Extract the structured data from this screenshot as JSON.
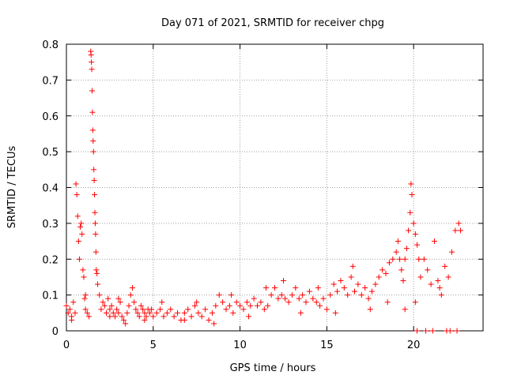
{
  "chart_data": {
    "type": "scatter",
    "title": "Day 071 of 2021, SRMTID for receiver chpg",
    "xlabel": "GPS time / hours",
    "ylabel": "SRMTID / TECUs",
    "xlim": [
      0,
      24
    ],
    "ylim": [
      0,
      0.8
    ],
    "x_ticks": [
      0,
      5,
      10,
      15,
      20
    ],
    "x_tick_labels": [
      "0",
      "5",
      "10",
      "15",
      "20"
    ],
    "y_ticks": [
      0,
      0.1,
      0.2,
      0.3,
      0.4,
      0.5,
      0.6,
      0.7,
      0.8
    ],
    "y_tick_labels": [
      "0",
      "0.1",
      "0.2",
      "0.3",
      "0.4",
      "0.5",
      "0.6",
      "0.7",
      "0.8"
    ],
    "grid": true,
    "marker": "+",
    "color": "#ff0000",
    "series": [
      {
        "name": "SRMTID",
        "points": [
          [
            0.0,
            0.07
          ],
          [
            0.1,
            0.05
          ],
          [
            0.2,
            0.06
          ],
          [
            0.3,
            0.04
          ],
          [
            0.4,
            0.08
          ],
          [
            0.5,
            0.05
          ],
          [
            0.55,
            0.41
          ],
          [
            0.6,
            0.38
          ],
          [
            0.65,
            0.32
          ],
          [
            0.7,
            0.25
          ],
          [
            0.75,
            0.2
          ],
          [
            0.8,
            0.29
          ],
          [
            0.85,
            0.3
          ],
          [
            0.9,
            0.27
          ],
          [
            0.95,
            0.17
          ],
          [
            1.0,
            0.15
          ],
          [
            1.05,
            0.09
          ],
          [
            1.1,
            0.06
          ],
          [
            1.2,
            0.05
          ],
          [
            1.3,
            0.04
          ],
          [
            1.4,
            0.78
          ],
          [
            1.42,
            0.77
          ],
          [
            1.44,
            0.75
          ],
          [
            1.46,
            0.73
          ],
          [
            1.48,
            0.67
          ],
          [
            1.5,
            0.61
          ],
          [
            1.52,
            0.56
          ],
          [
            1.54,
            0.53
          ],
          [
            1.56,
            0.5
          ],
          [
            1.58,
            0.45
          ],
          [
            1.6,
            0.42
          ],
          [
            1.62,
            0.38
          ],
          [
            1.64,
            0.33
          ],
          [
            1.66,
            0.3
          ],
          [
            1.68,
            0.27
          ],
          [
            1.7,
            0.22
          ],
          [
            1.72,
            0.17
          ],
          [
            1.76,
            0.16
          ],
          [
            1.8,
            0.13
          ],
          [
            1.9,
            0.1
          ],
          [
            2.0,
            0.06
          ],
          [
            2.1,
            0.08
          ],
          [
            2.2,
            0.07
          ],
          [
            2.3,
            0.05
          ],
          [
            2.4,
            0.09
          ],
          [
            2.5,
            0.06
          ],
          [
            2.6,
            0.07
          ],
          [
            2.7,
            0.05
          ],
          [
            2.8,
            0.04
          ],
          [
            2.9,
            0.06
          ],
          [
            3.0,
            0.05
          ],
          [
            3.1,
            0.08
          ],
          [
            3.2,
            0.04
          ],
          [
            3.3,
            0.03
          ],
          [
            3.4,
            0.02
          ],
          [
            3.5,
            0.05
          ],
          [
            3.6,
            0.07
          ],
          [
            3.7,
            0.1
          ],
          [
            3.8,
            0.12
          ],
          [
            3.9,
            0.08
          ],
          [
            4.0,
            0.06
          ],
          [
            4.1,
            0.05
          ],
          [
            4.2,
            0.04
          ],
          [
            4.3,
            0.07
          ],
          [
            4.4,
            0.06
          ],
          [
            4.5,
            0.05
          ],
          [
            4.6,
            0.04
          ],
          [
            4.7,
            0.06
          ],
          [
            4.8,
            0.05
          ],
          [
            4.9,
            0.06
          ],
          [
            5.0,
            0.04
          ],
          [
            5.2,
            0.05
          ],
          [
            5.4,
            0.06
          ],
          [
            5.6,
            0.04
          ],
          [
            5.8,
            0.05
          ],
          [
            6.0,
            0.06
          ],
          [
            6.2,
            0.04
          ],
          [
            6.4,
            0.05
          ],
          [
            6.6,
            0.03
          ],
          [
            6.8,
            0.05
          ],
          [
            7.0,
            0.06
          ],
          [
            7.2,
            0.04
          ],
          [
            7.4,
            0.07
          ],
          [
            7.6,
            0.05
          ],
          [
            7.8,
            0.04
          ],
          [
            8.0,
            0.06
          ],
          [
            8.2,
            0.03
          ],
          [
            8.4,
            0.05
          ],
          [
            8.6,
            0.07
          ],
          [
            8.8,
            0.1
          ],
          [
            9.0,
            0.08
          ],
          [
            9.2,
            0.06
          ],
          [
            9.4,
            0.07
          ],
          [
            9.6,
            0.05
          ],
          [
            9.8,
            0.08
          ],
          [
            10.0,
            0.07
          ],
          [
            10.2,
            0.06
          ],
          [
            10.4,
            0.08
          ],
          [
            10.6,
            0.07
          ],
          [
            10.8,
            0.09
          ],
          [
            11.0,
            0.07
          ],
          [
            11.2,
            0.08
          ],
          [
            11.4,
            0.06
          ],
          [
            11.6,
            0.07
          ],
          [
            11.8,
            0.1
          ],
          [
            12.0,
            0.12
          ],
          [
            12.2,
            0.09
          ],
          [
            12.4,
            0.1
          ],
          [
            12.6,
            0.09
          ],
          [
            12.8,
            0.08
          ],
          [
            13.0,
            0.1
          ],
          [
            13.2,
            0.12
          ],
          [
            13.4,
            0.09
          ],
          [
            13.6,
            0.1
          ],
          [
            13.8,
            0.08
          ],
          [
            14.0,
            0.11
          ],
          [
            14.2,
            0.09
          ],
          [
            14.4,
            0.08
          ],
          [
            14.6,
            0.07
          ],
          [
            14.8,
            0.09
          ],
          [
            15.0,
            0.06
          ],
          [
            15.2,
            0.1
          ],
          [
            15.4,
            0.13
          ],
          [
            15.6,
            0.11
          ],
          [
            15.8,
            0.14
          ],
          [
            16.0,
            0.12
          ],
          [
            16.2,
            0.1
          ],
          [
            16.4,
            0.15
          ],
          [
            16.6,
            0.11
          ],
          [
            16.8,
            0.13
          ],
          [
            17.0,
            0.1
          ],
          [
            17.2,
            0.12
          ],
          [
            17.4,
            0.09
          ],
          [
            17.6,
            0.11
          ],
          [
            17.8,
            0.13
          ],
          [
            18.0,
            0.15
          ],
          [
            18.2,
            0.17
          ],
          [
            18.4,
            0.16
          ],
          [
            18.6,
            0.19
          ],
          [
            18.8,
            0.2
          ],
          [
            19.0,
            0.22
          ],
          [
            19.1,
            0.25
          ],
          [
            19.2,
            0.2
          ],
          [
            19.3,
            0.17
          ],
          [
            19.4,
            0.14
          ],
          [
            19.5,
            0.2
          ],
          [
            19.6,
            0.23
          ],
          [
            19.7,
            0.28
          ],
          [
            19.8,
            0.33
          ],
          [
            19.85,
            0.41
          ],
          [
            19.9,
            0.38
          ],
          [
            20.0,
            0.3
          ],
          [
            20.1,
            0.27
          ],
          [
            20.2,
            0.24
          ],
          [
            20.3,
            0.2
          ],
          [
            20.4,
            0.15
          ],
          [
            20.6,
            0.2
          ],
          [
            20.8,
            0.17
          ],
          [
            21.0,
            0.13
          ],
          [
            21.2,
            0.25
          ],
          [
            21.4,
            0.14
          ],
          [
            21.5,
            0.12
          ],
          [
            21.6,
            0.1
          ],
          [
            21.8,
            0.18
          ],
          [
            22.0,
            0.15
          ],
          [
            22.2,
            0.22
          ],
          [
            22.4,
            0.28
          ],
          [
            22.6,
            0.3
          ],
          [
            22.7,
            0.28
          ],
          [
            0.3,
            0.03
          ],
          [
            1.1,
            0.1
          ],
          [
            2.5,
            0.04
          ],
          [
            3.0,
            0.09
          ],
          [
            4.5,
            0.03
          ],
          [
            5.5,
            0.08
          ],
          [
            6.8,
            0.03
          ],
          [
            7.5,
            0.08
          ],
          [
            8.5,
            0.02
          ],
          [
            9.5,
            0.1
          ],
          [
            10.5,
            0.04
          ],
          [
            11.5,
            0.12
          ],
          [
            12.5,
            0.14
          ],
          [
            13.5,
            0.05
          ],
          [
            14.5,
            0.12
          ],
          [
            15.5,
            0.05
          ],
          [
            16.5,
            0.18
          ],
          [
            17.5,
            0.06
          ],
          [
            18.5,
            0.08
          ],
          [
            19.5,
            0.06
          ],
          [
            20.1,
            0.08
          ],
          [
            20.2,
            0.0
          ],
          [
            20.7,
            0.0
          ],
          [
            21.1,
            0.0
          ],
          [
            21.9,
            0.0
          ],
          [
            22.1,
            0.0
          ],
          [
            22.5,
            0.0
          ]
        ]
      }
    ]
  }
}
